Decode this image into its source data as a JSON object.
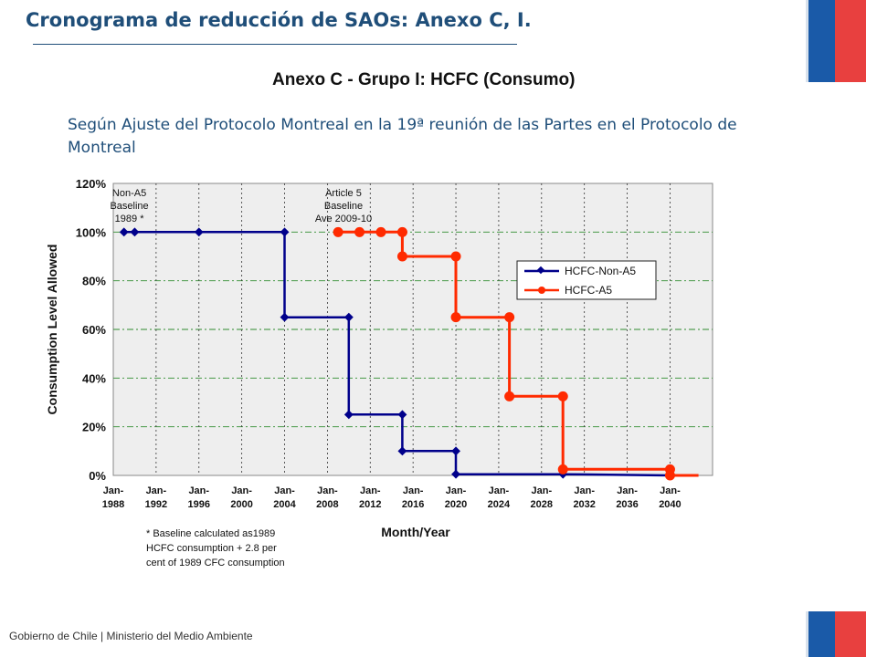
{
  "header": {
    "title": "Cronograma de reducción de SAOs: Anexo C, I.",
    "annex_caption": "Anexo C - Grupo I:  HCFC  (Consumo)",
    "description": "Según Ajuste del Protocolo Montreal en la 19ª reunión de las Partes en el Protocolo de Montreal"
  },
  "footer": {
    "text": "Gobierno de Chile | Ministerio del Medio Ambiente"
  },
  "colors": {
    "title": "#1f4e79",
    "flag_blue": "#1a5aa8",
    "flag_red": "#e8403f",
    "non_a5": "#00008b",
    "a5": "#ff2a00",
    "grid_h": "#2e8b2e",
    "plot_bg": "#eeeeee"
  },
  "chart_data": {
    "type": "line",
    "step": true,
    "xlabel": "Month/Year",
    "ylabel": "Consumption Level Allowed",
    "ylim": [
      0,
      1.2
    ],
    "xlim": [
      1988,
      2043
    ],
    "y_ticks": [
      "0%",
      "20%",
      "40%",
      "60%",
      "80%",
      "100%",
      "120%"
    ],
    "x_ticks": [
      {
        "year": 1988,
        "line1": "Jan-",
        "line2": "1988"
      },
      {
        "year": 1992,
        "line1": "Jan-",
        "line2": "1992"
      },
      {
        "year": 1996,
        "line1": "Jan-",
        "line2": "1996"
      },
      {
        "year": 2000,
        "line1": "Jan-",
        "line2": "2000"
      },
      {
        "year": 2004,
        "line1": "Jan-",
        "line2": "2004"
      },
      {
        "year": 2008,
        "line1": "Jan-",
        "line2": "2008"
      },
      {
        "year": 2012,
        "line1": "Jan-",
        "line2": "2012"
      },
      {
        "year": 2016,
        "line1": "Jan-",
        "line2": "2016"
      },
      {
        "year": 2020,
        "line1": "Jan-",
        "line2": "2020"
      },
      {
        "year": 2024,
        "line1": "Jan-",
        "line2": "2024"
      },
      {
        "year": 2028,
        "line1": "Jan-",
        "line2": "2028"
      },
      {
        "year": 2032,
        "line1": "Jan-",
        "line2": "2032"
      },
      {
        "year": 2036,
        "line1": "Jan-",
        "line2": "2036"
      },
      {
        "year": 2040,
        "line1": "Jan-",
        "line2": "2040"
      }
    ],
    "grid": true,
    "legend_position": "top-right",
    "series": [
      {
        "name": "HCFC-Non-A5",
        "color": "#00008b",
        "marker": "diamond",
        "points": [
          [
            1989,
            1.0
          ],
          [
            1990,
            1.0
          ],
          [
            1996,
            1.0
          ],
          [
            2004,
            1.0
          ],
          [
            2004,
            0.65
          ],
          [
            2010,
            0.65
          ],
          [
            2010,
            0.25
          ],
          [
            2015,
            0.25
          ],
          [
            2015,
            0.1
          ],
          [
            2020,
            0.1
          ],
          [
            2020,
            0.005
          ],
          [
            2030,
            0.005
          ],
          [
            2040,
            0.0
          ]
        ]
      },
      {
        "name": "HCFC-A5",
        "color": "#ff2a00",
        "marker": "circle",
        "points": [
          [
            2009,
            1.0
          ],
          [
            2011,
            1.0
          ],
          [
            2013,
            1.0
          ],
          [
            2015,
            1.0
          ],
          [
            2015,
            0.9
          ],
          [
            2020,
            0.9
          ],
          [
            2020,
            0.65
          ],
          [
            2025,
            0.65
          ],
          [
            2025,
            0.325
          ],
          [
            2030,
            0.325
          ],
          [
            2030,
            0.025
          ],
          [
            2040,
            0.025
          ],
          [
            2040,
            0.0
          ]
        ],
        "tail_to": 2043
      }
    ],
    "annotations": [
      {
        "id": "non-a5-baseline",
        "lines": [
          "Non-A5",
          "Baseline",
          "1989 *"
        ],
        "year": 1989.5,
        "value": 1.12
      },
      {
        "id": "a5-baseline",
        "lines": [
          "Article 5",
          "Baseline",
          "Ave 2009-10"
        ],
        "year": 2009.5,
        "value": 1.12
      }
    ],
    "footnote": [
      "* Baseline calculated as1989",
      "HCFC consumption + 2.8 per",
      "cent of 1989 CFC consumption"
    ]
  }
}
